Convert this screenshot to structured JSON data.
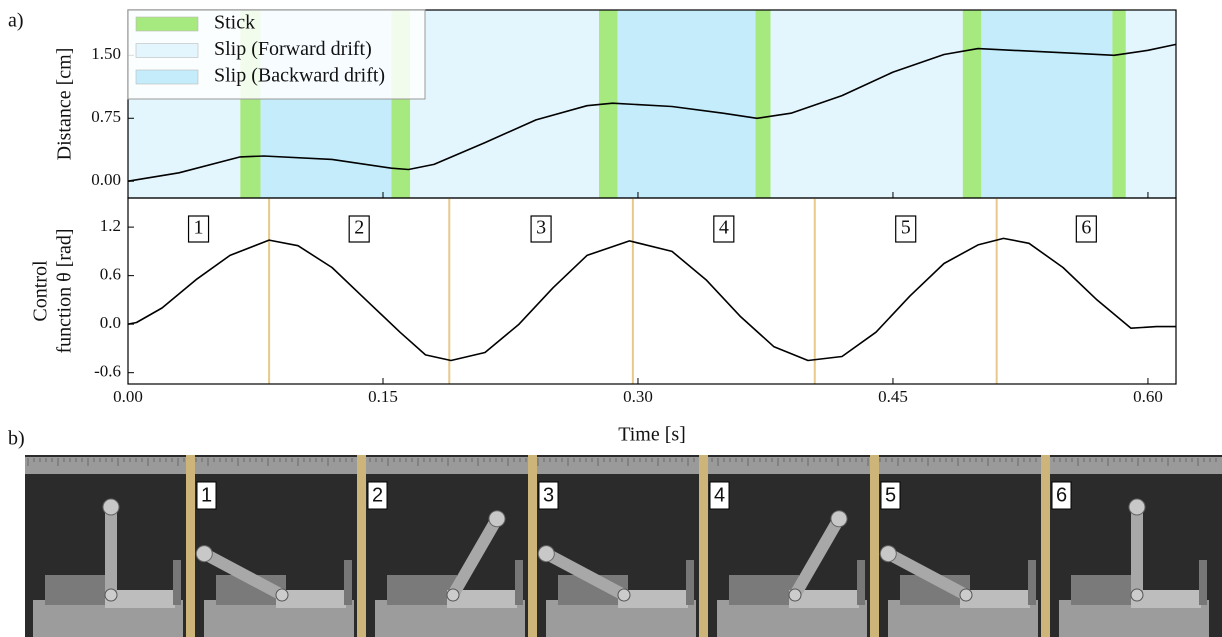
{
  "chart_data": [
    {
      "type": "line",
      "panel_label": "a)",
      "ylabel": "Distance [cm]",
      "xlim": [
        0,
        0.6165
      ],
      "ylim": [
        -0.2,
        2.04
      ],
      "yticks": [
        {
          "value": 0,
          "label": "0.00"
        },
        0.75,
        {
          "value": 1.5,
          "label": "1.50"
        }
      ],
      "regions": [
        {
          "name": "Stick",
          "color": "#a6e97e",
          "intervals": [
            [
              0.066,
              0.078
            ],
            [
              0.155,
              0.166
            ],
            [
              0.277,
              0.288
            ],
            [
              0.369,
              0.378
            ],
            [
              0.491,
              0.502
            ],
            [
              0.579,
              0.587
            ]
          ]
        },
        {
          "name": "Slip (Forward drift)",
          "color": "#e4f6fd",
          "intervals": [
            [
              0,
              0.066
            ],
            [
              0.166,
              0.277
            ],
            [
              0.378,
              0.491
            ],
            [
              0.587,
              0.6165
            ]
          ]
        },
        {
          "name": "Slip (Backward drift)",
          "color": "#c4ecfa",
          "intervals": [
            [
              0.078,
              0.155
            ],
            [
              0.288,
              0.369
            ],
            [
              0.502,
              0.579
            ]
          ]
        }
      ],
      "x": [
        0,
        0.03,
        0.066,
        0.08,
        0.12,
        0.155,
        0.165,
        0.18,
        0.21,
        0.24,
        0.27,
        0.285,
        0.32,
        0.35,
        0.37,
        0.39,
        0.42,
        0.45,
        0.48,
        0.5,
        0.53,
        0.56,
        0.58,
        0.6,
        0.6165
      ],
      "series": [
        {
          "color": "#000000",
          "values": [
            0,
            0.1,
            0.29,
            0.3,
            0.26,
            0.155,
            0.14,
            0.2,
            0.46,
            0.73,
            0.9,
            0.93,
            0.89,
            0.81,
            0.75,
            0.81,
            1.02,
            1.3,
            1.51,
            1.58,
            1.55,
            1.52,
            1.5,
            1.56,
            1.63
          ]
        }
      ]
    },
    {
      "type": "line",
      "ylabel": [
        "Control",
        "function θ [rad]"
      ],
      "xlabel": "Time [s]",
      "xlim": [
        0,
        0.6165
      ],
      "ylim": [
        -0.74,
        1.56
      ],
      "xticks": [
        {
          "value": 0,
          "label": "0.00"
        },
        0.15,
        {
          "value": 0.3,
          "label": "0.30"
        },
        0.45,
        {
          "value": 0.6,
          "label": "0.60"
        }
      ],
      "yticks": [
        1.2,
        0.6,
        {
          "value": 0,
          "label": "0.0"
        },
        -0.6
      ],
      "phase_lines": {
        "color": "#e8c98a",
        "x": [
          0.083,
          0.189,
          0.297,
          0.404,
          0.511
        ]
      },
      "phase_labels": [
        "1",
        "2",
        "3",
        "4",
        "5",
        "6"
      ],
      "x": [
        0,
        0.005,
        0.02,
        0.04,
        0.06,
        0.083,
        0.1,
        0.12,
        0.14,
        0.16,
        0.175,
        0.19,
        0.21,
        0.23,
        0.25,
        0.27,
        0.295,
        0.32,
        0.34,
        0.36,
        0.38,
        0.4,
        0.42,
        0.44,
        0.46,
        0.48,
        0.5,
        0.515,
        0.53,
        0.55,
        0.57,
        0.59,
        0.605,
        0.6165
      ],
      "series": [
        {
          "color": "#000000",
          "values": [
            0,
            0.02,
            0.2,
            0.55,
            0.85,
            1.04,
            0.97,
            0.7,
            0.3,
            -0.1,
            -0.38,
            -0.45,
            -0.35,
            0,
            0.45,
            0.85,
            1.03,
            0.9,
            0.55,
            0.1,
            -0.28,
            -0.45,
            -0.4,
            -0.1,
            0.35,
            0.75,
            0.98,
            1.06,
            1,
            0.7,
            0.3,
            -0.05,
            -0.03,
            -0.03
          ]
        }
      ]
    }
  ],
  "photo_strip": {
    "panel_label": "b)",
    "frame_labels": [
      "1",
      "2",
      "3",
      "4",
      "5",
      "6"
    ]
  }
}
